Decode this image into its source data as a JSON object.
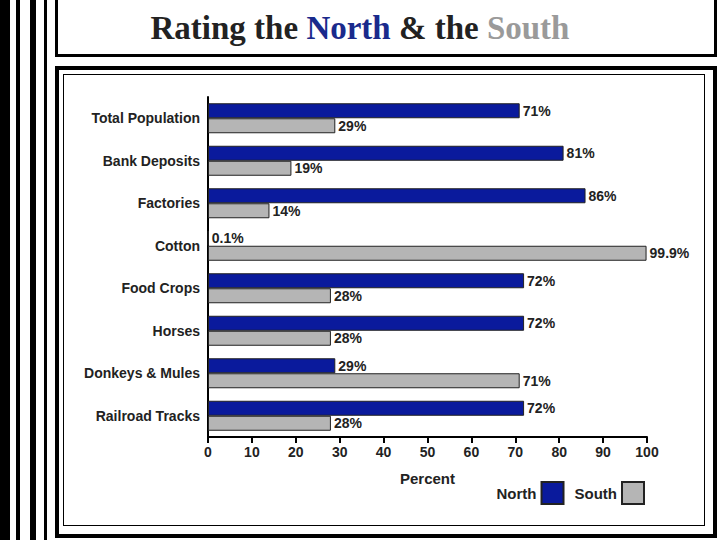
{
  "chart_data": {
    "type": "bar",
    "title": "Rating the North & the South",
    "orientation": "horizontal",
    "categories": [
      "Total Population",
      "Bank Deposits",
      "Factories",
      "Cotton",
      "Food Crops",
      "Horses",
      "Donkeys & Mules",
      "Railroad Tracks"
    ],
    "series": [
      {
        "name": "North",
        "color": "#0a1a9c",
        "values": [
          71,
          81,
          86,
          0.1,
          72,
          72,
          29,
          72
        ],
        "value_labels": [
          "71%",
          "81%",
          "86%",
          "0.1%",
          "72%",
          "72%",
          "29%",
          "72%"
        ]
      },
      {
        "name": "South",
        "color": "#b5b5b5",
        "values": [
          29,
          19,
          14,
          99.9,
          28,
          28,
          71,
          28
        ],
        "value_labels": [
          "29%",
          "19%",
          "14%",
          "99.9%",
          "28%",
          "28%",
          "71%",
          "28%"
        ]
      }
    ],
    "x_label": "Percent",
    "xlim": [
      0,
      100
    ],
    "xticks": [
      0,
      10,
      20,
      30,
      40,
      50,
      60,
      70,
      80,
      90,
      100
    ],
    "grid": false,
    "legend": "bottom-right",
    "data_labels": true
  }
}
